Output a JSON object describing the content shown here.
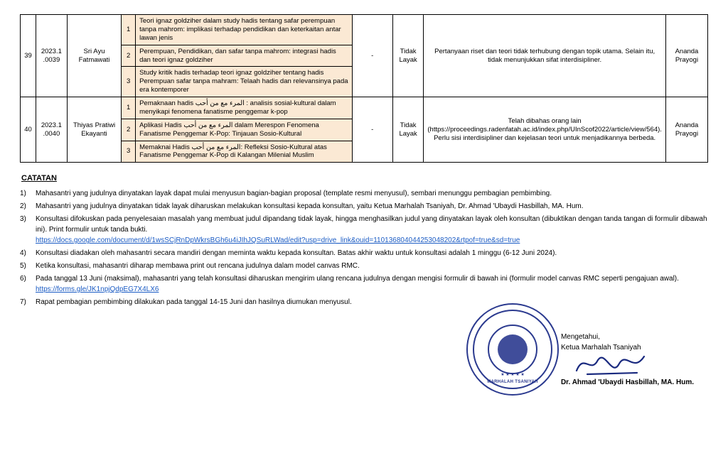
{
  "rows": [
    {
      "no": "39",
      "code": "2023.1\n.0039",
      "name": "Sri Ayu\nFatmawati",
      "titles": [
        "Teori ignaz goldziher dalam study hadis tentang safar perempuan tanpa mahrom: implikasi terhadap pendidikan dan keterkaitan antar lawan jenis",
        "Perempuan, Pendidikan, dan safar tanpa mahrom: integrasi hadis dan teori ignaz goldziher",
        "Study kritik hadis terhadap teori ignaz goldziher tentang hadis Perempuan safar tanpa mahram: Telaah hadis dan relevansinya pada era kontemporer"
      ],
      "mid": "-",
      "status": "Tidak\nLayak",
      "notes": "Pertanyaan riset dan teori tidak terhubung dengan topik utama. Selain itu, tidak menunjukkan sifat interdisipliner.",
      "reviewer": "Ananda\nPrayogi"
    },
    {
      "no": "40",
      "code": "2023.1\n.0040",
      "name": "Thiyas Pratiwi\nEkayanti",
      "titles": [
        "Pemaknaan hadis المرء مع من أحب : analisis sosial-kultural dalam menyikapi fenomena fanatisme penggemar k-pop",
        "Aplikasi Hadis المرء مع من أحب dalam Merespon Fenomena Fanatisme Penggemar K-Pop: Tinjauan Sosio-Kultural",
        "Memaknai Hadis المرء مع من أحب: Refleksi Sosio-Kultural atas Fanatisme Penggemar K-Pop di Kalangan Milenial Muslim"
      ],
      "mid": "-",
      "status": "Tidak\nLayak",
      "notes": "Telah dibahas orang lain (https://proceedings.radenfatah.ac.id/index.php/UInScof2022/article/view/564). Perlu sisi interdisipliner dan kejelasan teori untuk menjadikannya berbeda.",
      "reviewer": "Ananda\nPrayogi"
    }
  ],
  "notes_heading": "CATATAN",
  "notes_items": [
    {
      "n": "1)",
      "text": "Mahasantri yang judulnya dinyatakan layak dapat mulai menyusun bagian-bagian proposal (template resmi menyusul), sembari menunggu pembagian pembimbing."
    },
    {
      "n": "2)",
      "text": "Mahasantri yang judulnya dinyatakan tidak layak diharuskan melakukan konsultasi kepada konsultan, yaitu Ketua Marhalah Tsaniyah, Dr. Ahmad 'Ubaydi Hasbillah, MA. Hum."
    },
    {
      "n": "3)",
      "text": "Konsultasi difokuskan pada penyelesaian masalah yang membuat judul dipandang tidak layak, hingga menghasilkan judul yang dinyatakan layak oleh konsultan (dibuktikan dengan tanda tangan di formulir dibawah ini). Print formulir untuk tanda bukti.",
      "link": "https://docs.google.com/document/d/1wsSCjRnDpWkrsBGh6u4iJIhJQSuRLWad/edit?usp=drive_link&ouid=110136804044253048202&rtpof=true&sd=true"
    },
    {
      "n": "4)",
      "text": "Konsultasi diadakan oleh mahasantri secara mandiri dengan meminta waktu kepada konsultan. Batas akhir waktu untuk konsultasi adalah 1 minggu (6-12 Juni 2024)."
    },
    {
      "n": "5)",
      "text": "Ketika konsultasi, mahasantri diharap membawa print out rencana judulnya dalam model canvas RMC."
    },
    {
      "n": "6)",
      "text": "Pada tanggal 13 Juni (maksimal), mahasantri yang telah konsultasi diharuskan mengirim ulang rencana judulnya dengan mengisi formulir di bawah ini (formulir model canvas RMC seperti pengajuan awal).",
      "link": "https://forms.gle/JK1npjQdpEG7X4LX6"
    },
    {
      "n": "7)",
      "text": "Rapat pembagian pembimbing dilakukan pada tanggal 14-15 Juni dan hasilnya diumukan menyusul."
    }
  ],
  "signoff": {
    "knowing": "Mengetahui,",
    "role": "Ketua Marhalah Tsaniyah",
    "name": "Dr. Ahmad 'Ubaydi Hasbillah, MA. Hum."
  },
  "stamp_label": "MARHALAH TSANIYAH",
  "colors": {
    "tint": "#fbe9d4",
    "stamp": "#2b3a8f",
    "link": "#1a5bc4",
    "signature": "#1a2a7f"
  }
}
